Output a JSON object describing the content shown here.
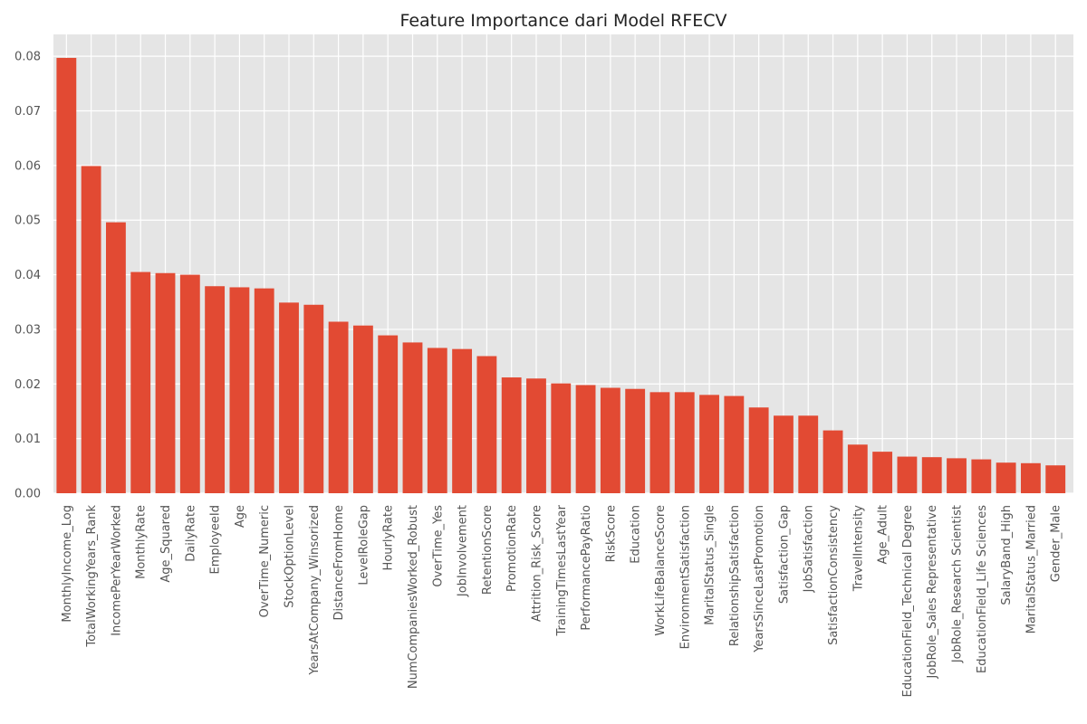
{
  "chart_data": {
    "type": "bar",
    "title": "Feature Importance dari Model RFECV",
    "xlabel": "",
    "ylabel": "",
    "ylim": [
      0,
      0.084
    ],
    "yticks": [
      "0.00",
      "0.01",
      "0.02",
      "0.03",
      "0.04",
      "0.05",
      "0.06",
      "0.07",
      "0.08"
    ],
    "grid": true,
    "colors": {
      "bar": "#e24a33",
      "plot_bg": "#e5e5e5",
      "grid": "#ffffff"
    },
    "categories": [
      "MonthlyIncome_Log",
      "TotalWorkingYears_Rank",
      "IncomePerYearWorked",
      "MonthlyRate",
      "Age_Squared",
      "DailyRate",
      "EmployeeId",
      "Age",
      "OverTime_Numeric",
      "StockOptionLevel",
      "YearsAtCompany_Winsorized",
      "DistanceFromHome",
      "LevelRoleGap",
      "HourlyRate",
      "NumCompaniesWorked_Robust",
      "OverTime_Yes",
      "JobInvolvement",
      "RetentionScore",
      "PromotionRate",
      "Attrition_Risk_Score",
      "TrainingTimesLastYear",
      "PerformancePayRatio",
      "RiskScore",
      "Education",
      "WorkLifeBalanceScore",
      "EnvironmentSatisfaction",
      "MaritalStatus_Single",
      "RelationshipSatisfaction",
      "YearsSinceLastPromotion",
      "Satisfaction_Gap",
      "JobSatisfaction",
      "SatisfactionConsistency",
      "TravelIntensity",
      "Age_Adult",
      "EducationField_Technical Degree",
      "JobRole_Sales Representative",
      "JobRole_Research Scientist",
      "EducationField_Life Sciences",
      "SalaryBand_High",
      "MaritalStatus_Married",
      "Gender_Male"
    ],
    "values": [
      0.0797,
      0.0599,
      0.0496,
      0.0405,
      0.0403,
      0.04,
      0.0379,
      0.0377,
      0.0375,
      0.0349,
      0.0345,
      0.0314,
      0.0307,
      0.0289,
      0.0276,
      0.0266,
      0.0264,
      0.0251,
      0.0212,
      0.021,
      0.0201,
      0.0198,
      0.0193,
      0.0191,
      0.0185,
      0.0185,
      0.018,
      0.0178,
      0.0157,
      0.0142,
      0.0142,
      0.0115,
      0.0089,
      0.0076,
      0.0067,
      0.0066,
      0.0064,
      0.0062,
      0.0056,
      0.0055,
      0.0051
    ]
  }
}
